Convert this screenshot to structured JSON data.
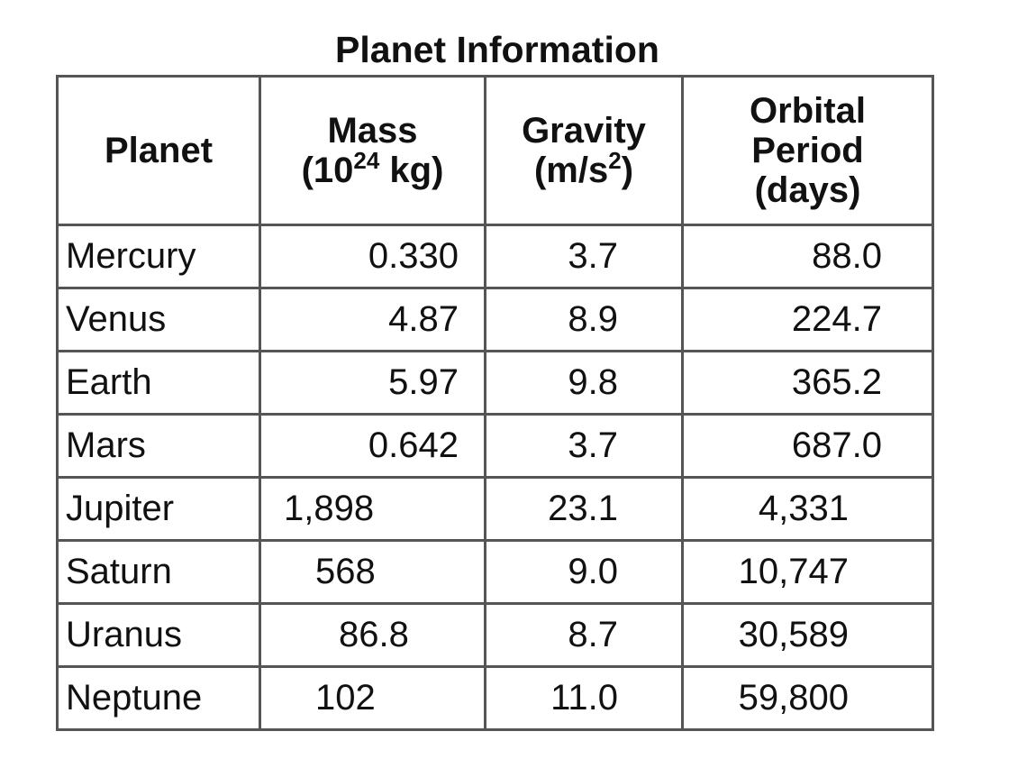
{
  "title": "Planet Information",
  "table": {
    "header": {
      "planet": "Planet",
      "mass": {
        "line1": "Mass",
        "open": "(10",
        "sup": "24",
        "close": " kg)"
      },
      "gravity": {
        "line1": "Gravity",
        "open": "(m/s",
        "sup": "2",
        "close": ")"
      },
      "period": {
        "line1": "Orbital",
        "line2": "Period",
        "line3": "(days)"
      }
    },
    "rows": [
      [
        "Mercury",
        "0.330",
        "3.7",
        "88.0"
      ],
      [
        "Venus",
        "4.87",
        "8.9",
        "224.7"
      ],
      [
        "Earth",
        "5.97",
        "9.8",
        "365.2"
      ],
      [
        "Mars",
        "0.642",
        "3.7",
        "687.0"
      ],
      [
        "Jupiter",
        "1,898",
        "23.1",
        "4,331"
      ],
      [
        "Saturn",
        "568",
        "9.0",
        "10,747"
      ],
      [
        "Uranus",
        "86.8",
        "8.7",
        "30,589"
      ],
      [
        "Neptune",
        "102",
        "11.0",
        "59,800"
      ]
    ]
  }
}
